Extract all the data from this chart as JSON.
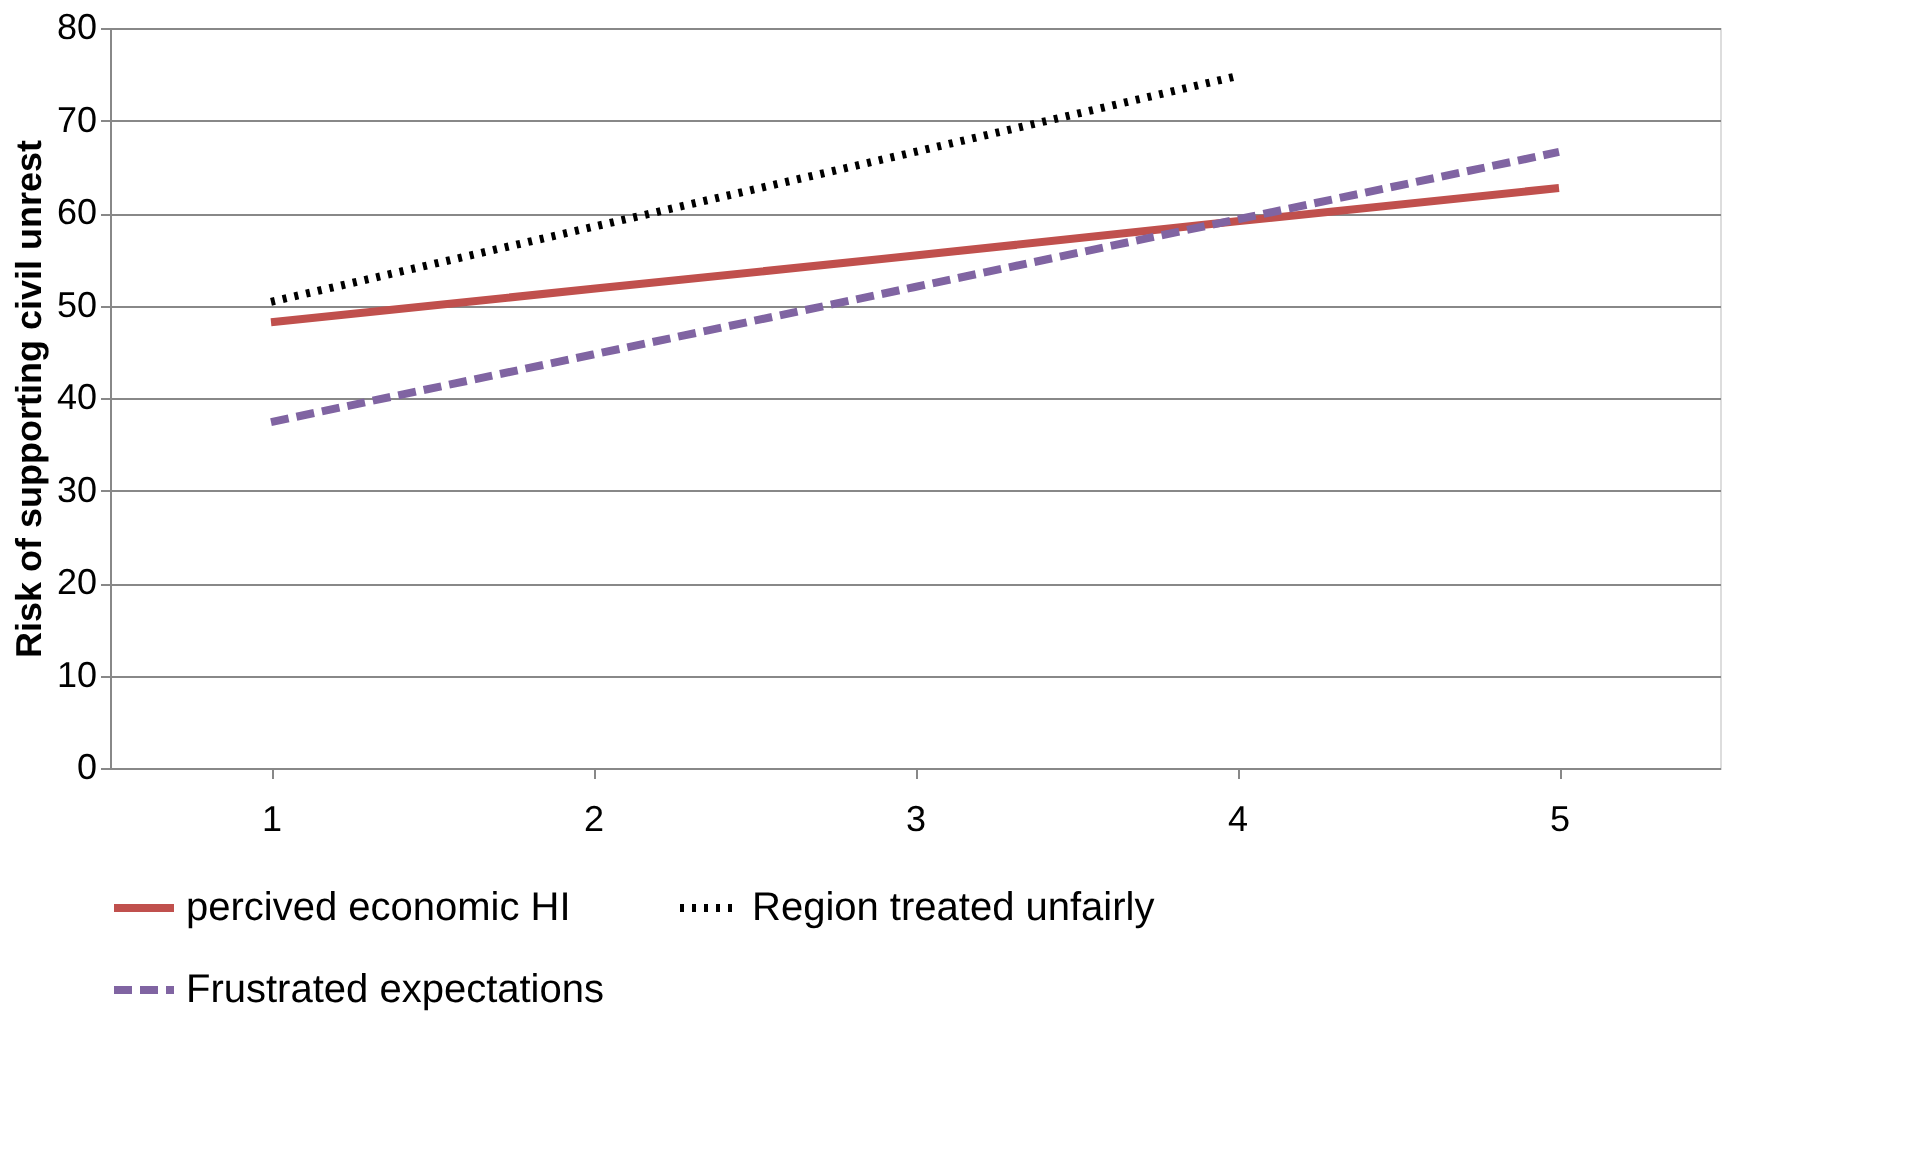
{
  "chart_data": {
    "type": "line",
    "ylabel": "Risk of supporting civil unrest",
    "categories": [
      "1",
      "2",
      "3",
      "4",
      "5"
    ],
    "series": [
      {
        "name": "percived economic HI",
        "color": "#c0504d",
        "line_style": "solid",
        "values": [
          48.2,
          51.8,
          55.4,
          59.1,
          62.7
        ]
      },
      {
        "name": "Region treated unfairly",
        "color": "#000000",
        "line_style": "dotted",
        "values": [
          50.4,
          58.5,
          66.6,
          74.8,
          null
        ]
      },
      {
        "name": "Frustrated expectations",
        "color": "#8064a2",
        "line_style": "dashed",
        "values": [
          37.4,
          44.7,
          52.0,
          59.3,
          66.6
        ]
      }
    ],
    "ylim": [
      0,
      80
    ],
    "yticks": [
      0,
      10,
      20,
      30,
      40,
      50,
      60,
      70,
      80
    ],
    "grid": "y",
    "legend": "bottom",
    "marker": "none"
  }
}
